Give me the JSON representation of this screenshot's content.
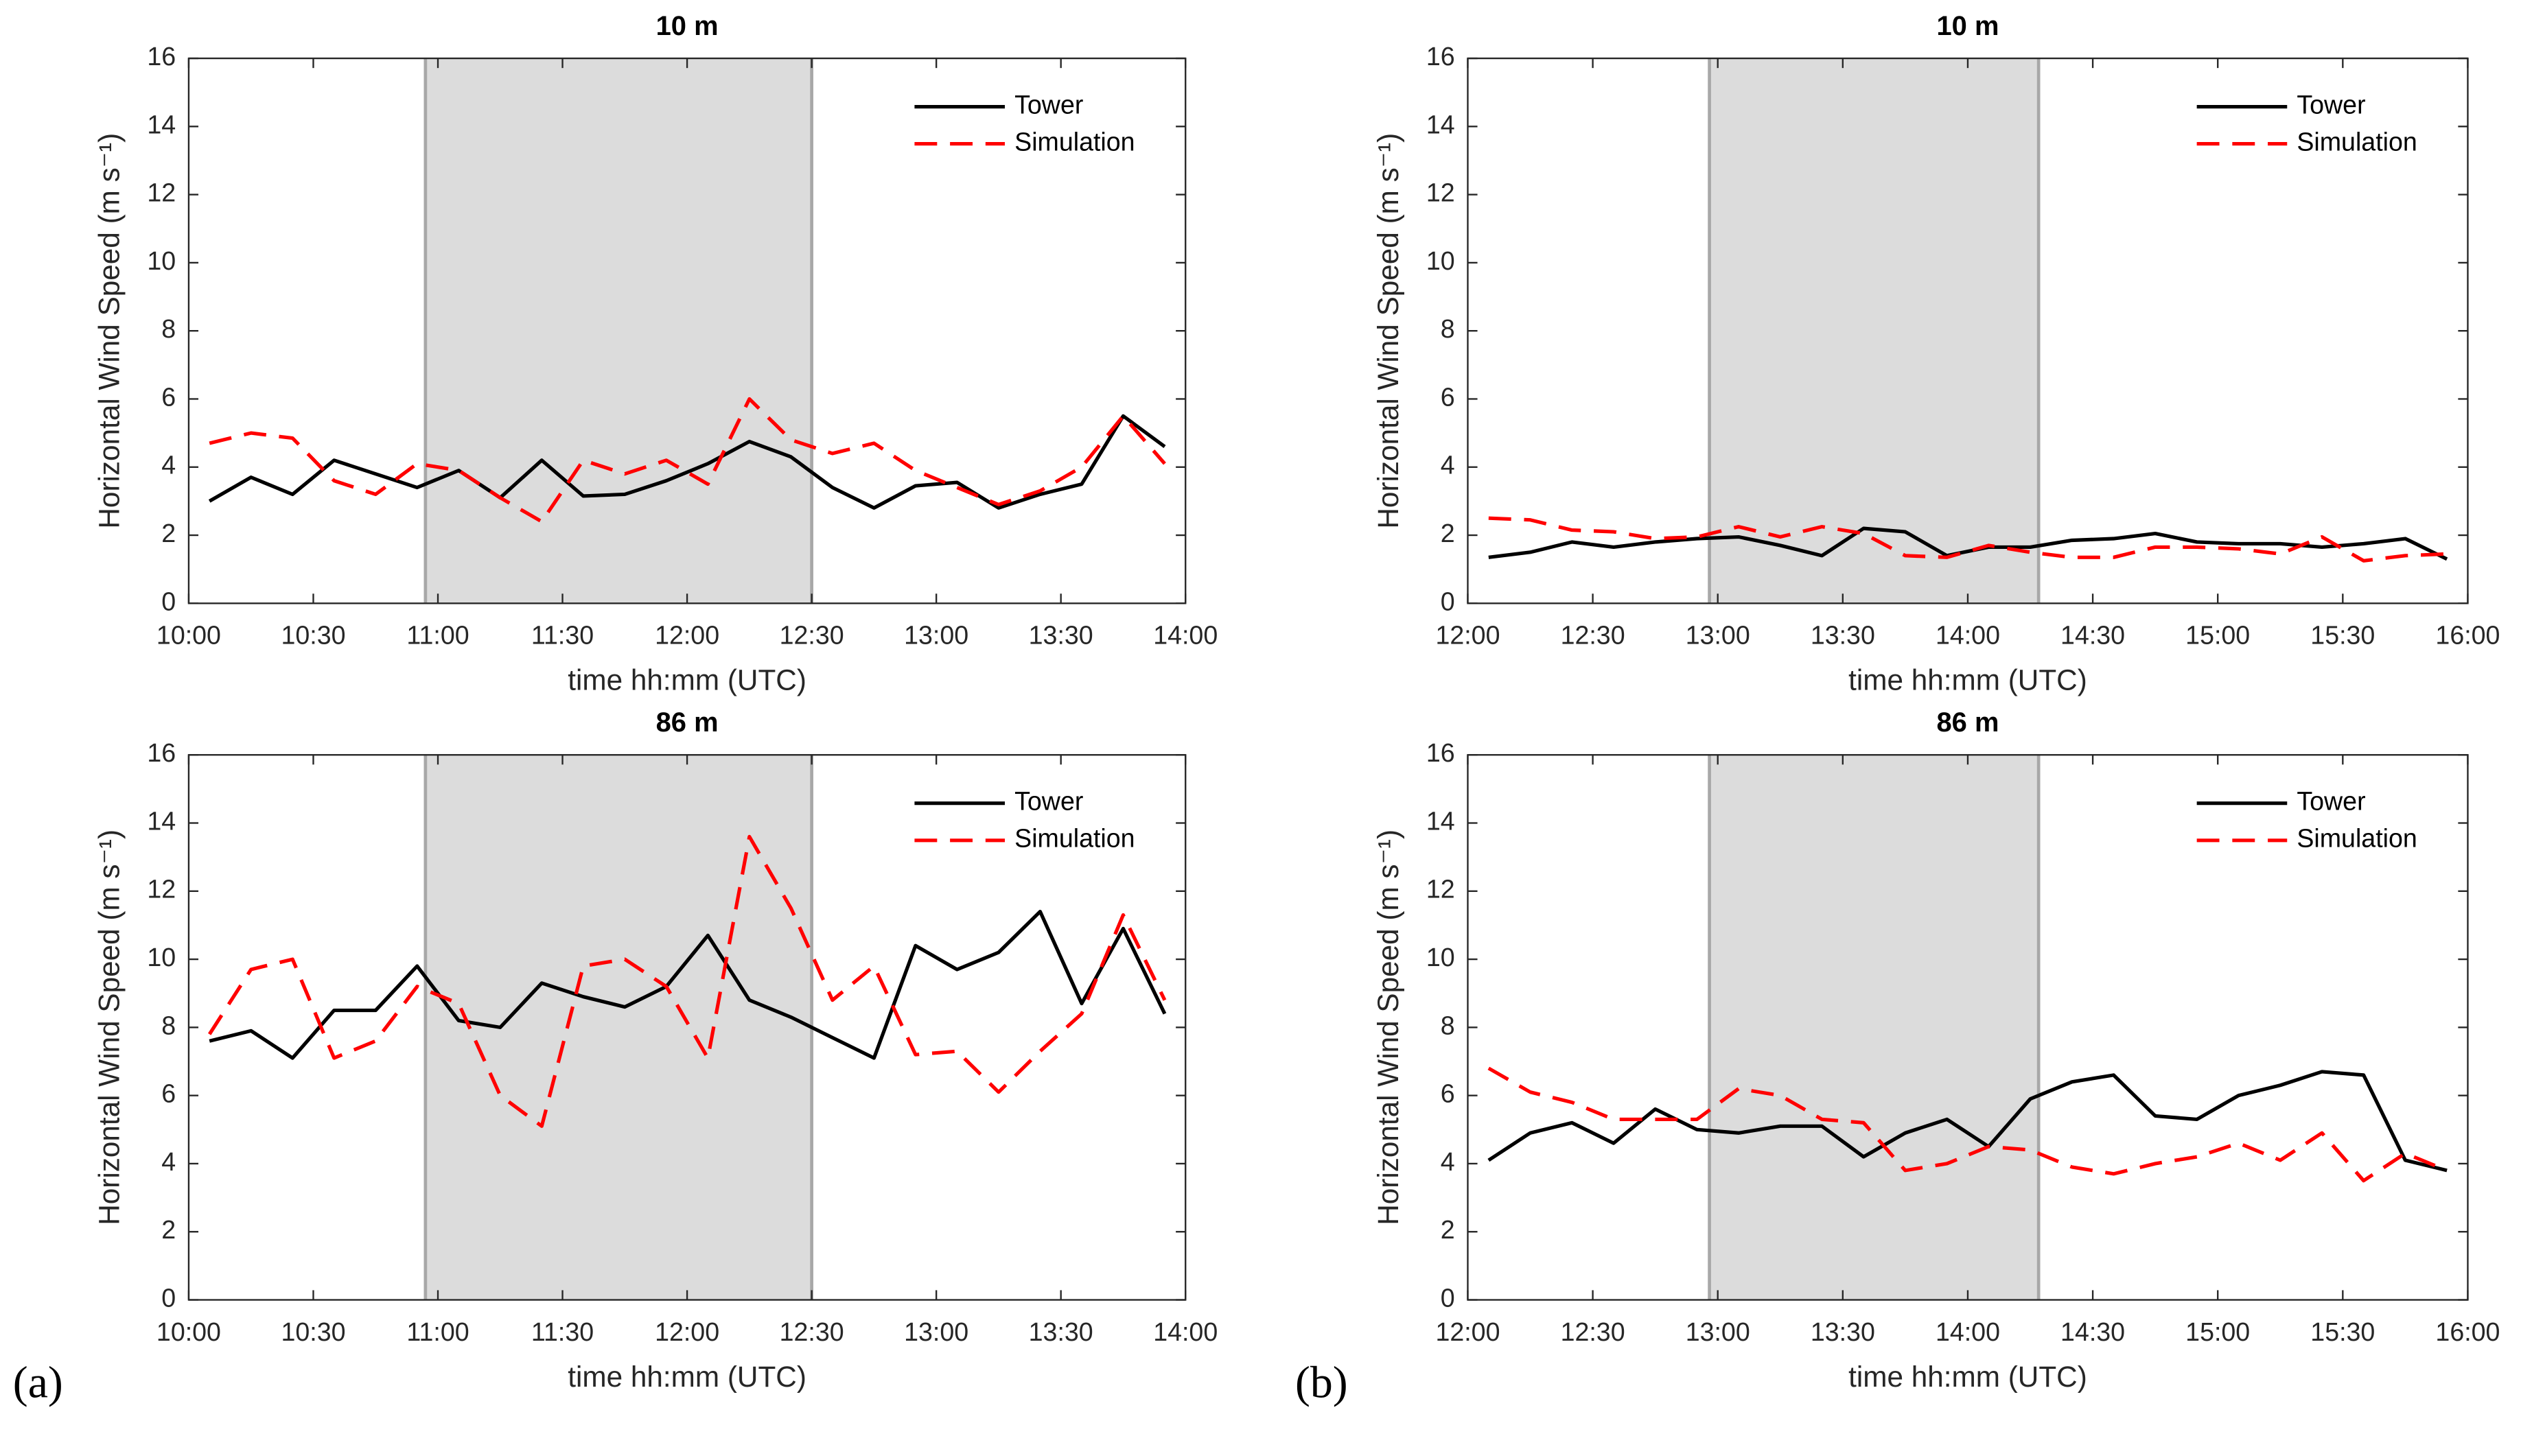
{
  "panel_labels": [
    "(a)",
    "(b)"
  ],
  "chart_data": [
    {
      "type": "line",
      "title": "10 m",
      "xlabel": "time hh:mm (UTC)",
      "ylabel": "Horizontal Wind Speed (m s⁻¹)",
      "xlim": [
        "10:00",
        "14:00"
      ],
      "xticks": [
        "10:00",
        "10:30",
        "11:00",
        "11:30",
        "12:00",
        "12:30",
        "13:00",
        "13:30",
        "14:00"
      ],
      "ylim": [
        0,
        16
      ],
      "yticks": [
        0,
        2,
        4,
        6,
        8,
        10,
        12,
        14,
        16
      ],
      "shade": [
        "10:57",
        "12:30"
      ],
      "shade_color": "#dcdcdc",
      "legend": "upper right",
      "x": [
        "10:05",
        "10:15",
        "10:25",
        "10:35",
        "10:45",
        "10:55",
        "11:05",
        "11:15",
        "11:25",
        "11:35",
        "11:45",
        "11:55",
        "12:05",
        "12:15",
        "12:25",
        "12:35",
        "12:45",
        "12:55",
        "13:05",
        "13:15",
        "13:25",
        "13:35",
        "13:45",
        "13:55"
      ],
      "series": [
        {
          "name": "Tower",
          "color": "#000000",
          "linestyle": "solid",
          "values": [
            3.0,
            3.7,
            3.2,
            4.2,
            3.8,
            3.4,
            3.9,
            3.1,
            4.2,
            3.15,
            3.2,
            3.6,
            4.1,
            4.75,
            4.3,
            3.4,
            2.8,
            3.45,
            3.55,
            2.8,
            3.2,
            3.5,
            5.5,
            4.6
          ]
        },
        {
          "name": "Simulation",
          "color": "#ff0000",
          "linestyle": "dashed",
          "values": [
            4.7,
            5.0,
            4.85,
            3.6,
            3.2,
            4.1,
            3.9,
            3.1,
            2.4,
            4.2,
            3.8,
            4.2,
            3.5,
            6.0,
            4.8,
            4.4,
            4.7,
            3.9,
            3.4,
            2.9,
            3.3,
            4.0,
            5.5,
            4.1
          ]
        }
      ]
    },
    {
      "type": "line",
      "title": "10 m",
      "xlabel": "time hh:mm (UTC)",
      "ylabel": "Horizontal Wind Speed (m s⁻¹)",
      "xlim": [
        "12:00",
        "16:00"
      ],
      "xticks": [
        "12:00",
        "12:30",
        "13:00",
        "13:30",
        "14:00",
        "14:30",
        "15:00",
        "15:30",
        "16:00"
      ],
      "ylim": [
        0,
        16
      ],
      "yticks": [
        0,
        2,
        4,
        6,
        8,
        10,
        12,
        14,
        16
      ],
      "shade": [
        "12:58",
        "14:17"
      ],
      "shade_color": "#dcdcdc",
      "legend": "upper right",
      "x": [
        "12:05",
        "12:15",
        "12:25",
        "12:35",
        "12:45",
        "12:55",
        "13:05",
        "13:15",
        "13:25",
        "13:35",
        "13:45",
        "13:55",
        "14:05",
        "14:15",
        "14:25",
        "14:35",
        "14:45",
        "14:55",
        "15:05",
        "15:15",
        "15:25",
        "15:35",
        "15:45",
        "15:55"
      ],
      "series": [
        {
          "name": "Tower",
          "color": "#000000",
          "linestyle": "solid",
          "values": [
            1.35,
            1.5,
            1.8,
            1.65,
            1.8,
            1.9,
            1.95,
            1.7,
            1.4,
            2.2,
            2.1,
            1.4,
            1.65,
            1.65,
            1.85,
            1.9,
            2.05,
            1.8,
            1.75,
            1.75,
            1.65,
            1.75,
            1.9,
            1.3
          ]
        },
        {
          "name": "Simulation",
          "color": "#ff0000",
          "linestyle": "dashed",
          "values": [
            2.5,
            2.45,
            2.15,
            2.1,
            1.9,
            1.95,
            2.25,
            1.95,
            2.25,
            2.05,
            1.4,
            1.35,
            1.7,
            1.5,
            1.35,
            1.35,
            1.65,
            1.65,
            1.6,
            1.45,
            1.95,
            1.25,
            1.4,
            1.45
          ]
        }
      ]
    },
    {
      "type": "line",
      "title": "86 m",
      "xlabel": "time hh:mm (UTC)",
      "ylabel": "Horizontal Wind Speed (m s⁻¹)",
      "xlim": [
        "10:00",
        "14:00"
      ],
      "xticks": [
        "10:00",
        "10:30",
        "11:00",
        "11:30",
        "12:00",
        "12:30",
        "13:00",
        "13:30",
        "14:00"
      ],
      "ylim": [
        0,
        16
      ],
      "yticks": [
        0,
        2,
        4,
        6,
        8,
        10,
        12,
        14,
        16
      ],
      "shade": [
        "10:57",
        "12:30"
      ],
      "shade_color": "#dcdcdc",
      "legend": "upper right",
      "x": [
        "10:05",
        "10:15",
        "10:25",
        "10:35",
        "10:45",
        "10:55",
        "11:05",
        "11:15",
        "11:25",
        "11:35",
        "11:45",
        "11:55",
        "12:05",
        "12:15",
        "12:25",
        "12:35",
        "12:45",
        "12:55",
        "13:05",
        "13:15",
        "13:25",
        "13:35",
        "13:45",
        "13:55"
      ],
      "series": [
        {
          "name": "Tower",
          "color": "#000000",
          "linestyle": "solid",
          "values": [
            7.6,
            7.9,
            7.1,
            8.5,
            8.5,
            9.8,
            8.2,
            8.0,
            9.3,
            8.9,
            8.6,
            9.2,
            10.7,
            8.8,
            8.3,
            7.7,
            7.1,
            10.4,
            9.7,
            10.2,
            11.4,
            8.7,
            10.9,
            8.4
          ]
        },
        {
          "name": "Simulation",
          "color": "#ff0000",
          "linestyle": "dashed",
          "values": [
            7.8,
            9.7,
            10.0,
            7.1,
            7.6,
            9.2,
            8.7,
            6.0,
            5.1,
            9.8,
            10.0,
            9.2,
            7.1,
            13.6,
            11.5,
            8.8,
            9.8,
            7.2,
            7.3,
            6.1,
            7.3,
            8.4,
            11.3,
            8.8
          ]
        }
      ]
    },
    {
      "type": "line",
      "title": "86 m",
      "xlabel": "time hh:mm (UTC)",
      "ylabel": "Horizontal Wind Speed (m s⁻¹)",
      "xlim": [
        "12:00",
        "16:00"
      ],
      "xticks": [
        "12:00",
        "12:30",
        "13:00",
        "13:30",
        "14:00",
        "14:30",
        "15:00",
        "15:30",
        "16:00"
      ],
      "ylim": [
        0,
        16
      ],
      "yticks": [
        0,
        2,
        4,
        6,
        8,
        10,
        12,
        14,
        16
      ],
      "shade": [
        "12:58",
        "14:17"
      ],
      "shade_color": "#dcdcdc",
      "legend": "upper right",
      "x": [
        "12:05",
        "12:15",
        "12:25",
        "12:35",
        "12:45",
        "12:55",
        "13:05",
        "13:15",
        "13:25",
        "13:35",
        "13:45",
        "13:55",
        "14:05",
        "14:15",
        "14:25",
        "14:35",
        "14:45",
        "14:55",
        "15:05",
        "15:15",
        "15:25",
        "15:35",
        "15:45",
        "15:55"
      ],
      "series": [
        {
          "name": "Tower",
          "color": "#000000",
          "linestyle": "solid",
          "values": [
            4.1,
            4.9,
            5.2,
            4.6,
            5.6,
            5.0,
            4.9,
            5.1,
            5.1,
            4.2,
            4.9,
            5.3,
            4.5,
            5.9,
            6.4,
            6.6,
            5.4,
            5.3,
            6.0,
            6.3,
            6.7,
            6.6,
            4.1,
            3.8
          ]
        },
        {
          "name": "Simulation",
          "color": "#ff0000",
          "linestyle": "dashed",
          "values": [
            6.8,
            6.1,
            5.8,
            5.3,
            5.3,
            5.3,
            6.2,
            6.0,
            5.3,
            5.2,
            3.8,
            4.0,
            4.5,
            4.4,
            3.9,
            3.7,
            4.0,
            4.2,
            4.6,
            4.1,
            4.9,
            3.5,
            4.3,
            3.8
          ]
        }
      ]
    }
  ]
}
